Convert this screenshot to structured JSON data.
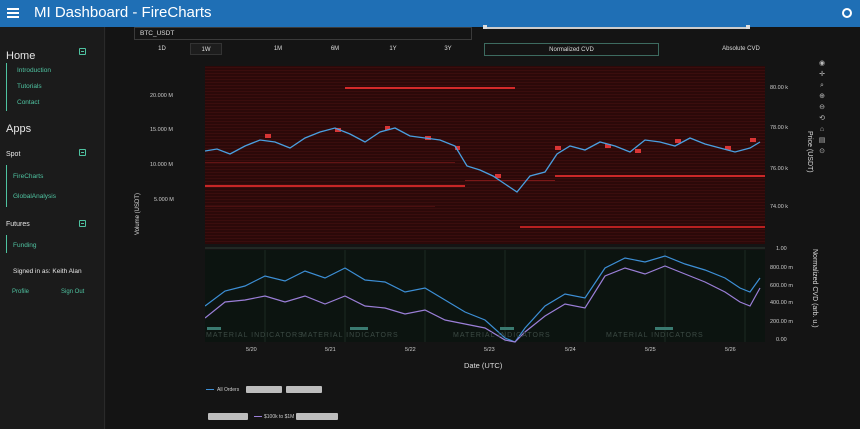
{
  "app": {
    "title": "MI Dashboard  -  FireCharts"
  },
  "sidebar": {
    "home": "Home",
    "home_links": [
      "Introduction",
      "Tutorials",
      "Contact"
    ],
    "apps": "Apps",
    "spot": "Spot",
    "spot_links": [
      "FireCharts",
      "GlobalAnalysis"
    ],
    "futures": "Futures",
    "futures_links": [
      "Funding"
    ],
    "signed_in": "Signed in as: Keith Alan",
    "profile": "Profile",
    "sign_out": "Sign Out"
  },
  "controls": {
    "ticker": "BTC_USDT",
    "timeframes": [
      "1D",
      "1W",
      "1M",
      "6M",
      "1Y",
      "3Y"
    ],
    "active_timeframe": "1W",
    "normalized_cvd": "Normalized CVD",
    "absolute_cvd": "Absolute CVD"
  },
  "chart": {
    "volume_axis_label": "Volume (USDT)",
    "volume_ticks": [
      "20.000 M",
      "15.000 M",
      "10.000 M",
      "5.000 M"
    ],
    "price_axis_label": "Price (USDT)",
    "price_ticks": [
      "80.00 k",
      "78.00 k",
      "76.00 k",
      "74.00 k"
    ],
    "cvd_axis_label": "Normalized CVD (arb. u.)",
    "cvd_ticks": [
      "1.00",
      "800.00 m",
      "600.00 m",
      "400.00 m",
      "200.00 m",
      "0.00"
    ],
    "date_ticks": [
      "5/20",
      "5/21",
      "5/22",
      "5/23",
      "5/24",
      "5/25",
      "5/26"
    ],
    "x_axis_label": "Date (UTC)",
    "watermark": "MATERIAL INDICATORS",
    "legend": [
      "All Orders",
      "$100k to $1M"
    ],
    "colors": {
      "price_line": "#4a9fe0",
      "cvd_blue": "#3d8fd6",
      "cvd_purple": "#9b7fd8",
      "heatmap_bg": "#2a0b0b",
      "order_red": "#e23131",
      "accent": "#4fc3a1",
      "header_blue": "#1f6fb5"
    }
  }
}
